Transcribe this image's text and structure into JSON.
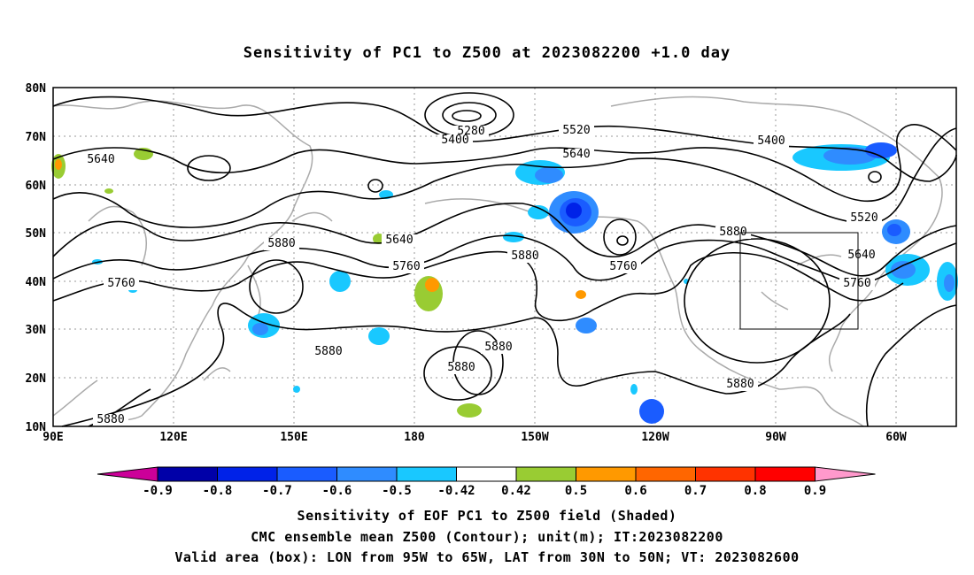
{
  "title": "Sensitivity of PC1 to Z500 at 2023082200 +1.0 day",
  "map": {
    "lat_labels": [
      "80N",
      "70N",
      "60N",
      "50N",
      "40N",
      "30N",
      "20N",
      "10N"
    ],
    "lon_labels": [
      "90E",
      "120E",
      "150E",
      "180",
      "150W",
      "120W",
      "90W",
      "60W"
    ],
    "contour_labels": [
      {
        "text": "5280"
      },
      {
        "text": "5400"
      },
      {
        "text": "5400"
      },
      {
        "text": "5520"
      },
      {
        "text": "5520"
      },
      {
        "text": "5640"
      },
      {
        "text": "5640"
      },
      {
        "text": "5640"
      },
      {
        "text": "5640"
      },
      {
        "text": "5760"
      },
      {
        "text": "5760"
      },
      {
        "text": "5760"
      },
      {
        "text": "5760"
      },
      {
        "text": "5880"
      },
      {
        "text": "5880"
      },
      {
        "text": "5880"
      },
      {
        "text": "5880"
      },
      {
        "text": "5880"
      },
      {
        "text": "5880"
      },
      {
        "text": "5880"
      },
      {
        "text": "5880"
      }
    ],
    "valid_box": {
      "lon_west": "95W",
      "lon_east": "65W",
      "lat_south": "30N",
      "lat_north": "50N"
    }
  },
  "colorbar": {
    "labels": [
      "-0.9",
      "-0.8",
      "-0.7",
      "-0.6",
      "-0.5",
      "-0.42",
      "0.42",
      "0.5",
      "0.6",
      "0.7",
      "0.8",
      "0.9"
    ],
    "colors": [
      "#0000a8",
      "#0022e8",
      "#1a5cff",
      "#2f8cff",
      "#19c8ff",
      "#ffffff",
      "#99cc33",
      "#ff9900",
      "#ff6600",
      "#ff3300",
      "#ff0000"
    ],
    "under_color": "#cc0099",
    "over_color": "#ff99cc"
  },
  "footer": {
    "line1": "Sensitivity of EOF PC1 to Z500 field (Shaded)",
    "line2": "CMC ensemble mean Z500 (Contour); unit(m); IT:2023082200",
    "line3": "Valid area (box): LON from 95W to 65W, LAT from 30N to 50N; VT: 2023082600"
  }
}
